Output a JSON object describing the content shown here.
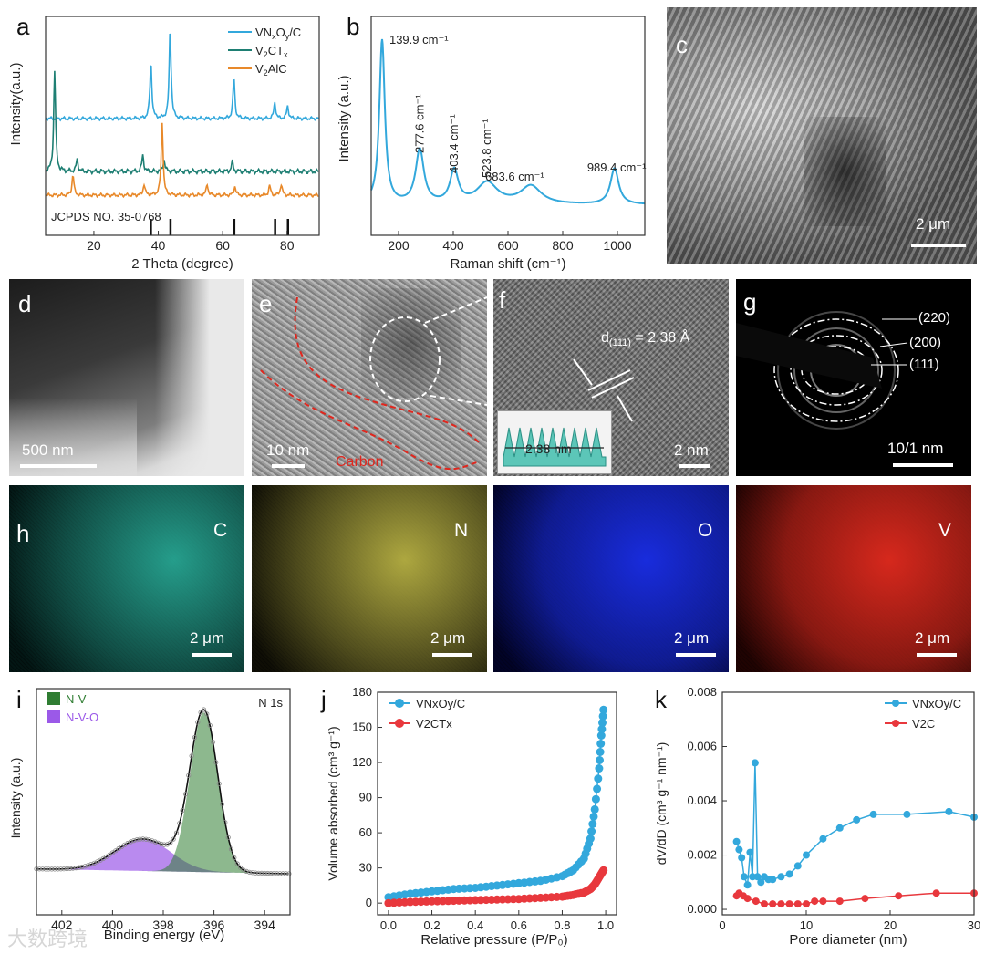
{
  "figure": {
    "panels": {
      "a": {
        "label": "a"
      },
      "b": {
        "label": "b"
      },
      "c": {
        "label": "c"
      },
      "d": {
        "label": "d"
      },
      "e": {
        "label": "e"
      },
      "f": {
        "label": "f"
      },
      "g": {
        "label": "g"
      },
      "h": {
        "label": "h"
      },
      "i": {
        "label": "i"
      },
      "j": {
        "label": "j"
      },
      "k": {
        "label": "k"
      }
    },
    "micrographs": {
      "c": {
        "scale": "2 μm",
        "kind": "SEM image"
      },
      "d": {
        "scale": "500 nm",
        "kind": "TEM image"
      },
      "e": {
        "scale": "10 nm",
        "annotation": "Carbon",
        "kind": "HRTEM image"
      },
      "f": {
        "scale": "2 nm",
        "d_spacing_label": "d(111) = 2.38 Å",
        "d_main": "d",
        "d_sub": "(111)",
        "d_rest": " = 2.38 Å",
        "inset_label": "2.38 nm",
        "kind": "HRTEM lattice image"
      },
      "g": {
        "scale": "10/1 nm",
        "rings": [
          "(220)",
          "(200)",
          "(111)"
        ],
        "kind": "SAED pattern"
      },
      "h": {
        "maps": [
          {
            "element": "C",
            "color": "#2bb5a0",
            "scale": "2 μm"
          },
          {
            "element": "N",
            "color": "#c9c24a",
            "scale": "2 μm"
          },
          {
            "element": "O",
            "color": "#1a2ee6",
            "scale": "2 μm"
          },
          {
            "element": "V",
            "color": "#e02a1e",
            "scale": "2 μm"
          }
        ]
      }
    },
    "watermark": "大数跨境"
  },
  "chart_data": [
    {
      "id": "a",
      "type": "line",
      "title": "",
      "xlabel": "2 Theta (degree)",
      "ylabel": "Intensity(a.u.)",
      "xlim": [
        5,
        90
      ],
      "xticks": [
        20,
        40,
        60,
        80
      ],
      "series": [
        {
          "name_main": "VN",
          "name_sub1": "x",
          "name_mid": "O",
          "name_sub2": "y",
          "name_end": "/C",
          "color": "#33a8dc",
          "peaks": [
            {
              "x": 37.7,
              "h": 0.62
            },
            {
              "x": 43.7,
              "h": 1.0
            },
            {
              "x": 63.5,
              "h": 0.45
            },
            {
              "x": 76.2,
              "h": 0.18
            },
            {
              "x": 80.2,
              "h": 0.14
            }
          ]
        },
        {
          "name_main": "V",
          "name_sub1": "2",
          "name_mid": "CT",
          "name_sub2": "x",
          "name_end": "",
          "color": "#1e7f73",
          "peaks": [
            {
              "x": 7.8,
              "h": 0.85
            },
            {
              "x": 14.8,
              "h": 0.1
            },
            {
              "x": 35.2,
              "h": 0.14
            },
            {
              "x": 41.8,
              "h": 0.1
            },
            {
              "x": 63.0,
              "h": 0.08
            }
          ]
        },
        {
          "name_main": "V",
          "name_sub1": "2",
          "name_mid": "AlC",
          "name_sub2": "",
          "name_end": "",
          "color": "#e8892a",
          "peaks": [
            {
              "x": 13.5,
              "h": 0.22
            },
            {
              "x": 35.6,
              "h": 0.12
            },
            {
              "x": 41.2,
              "h": 0.8
            },
            {
              "x": 55.2,
              "h": 0.12
            },
            {
              "x": 63.8,
              "h": 0.1
            },
            {
              "x": 74.6,
              "h": 0.1
            },
            {
              "x": 78.2,
              "h": 0.12
            }
          ]
        }
      ],
      "reference": {
        "label": "JCPDS NO. 35-0768",
        "lines": [
          37.7,
          43.8,
          63.6,
          76.3,
          80.3
        ]
      }
    },
    {
      "id": "b",
      "type": "line",
      "title": "",
      "xlabel": "Raman shift (cm⁻¹)",
      "ylabel": "Intensity (a.u.)",
      "xlim": [
        100,
        1100
      ],
      "xticks": [
        200,
        400,
        600,
        800,
        1000
      ],
      "series": [
        {
          "name": "VNxOy/C",
          "color": "#33a8dc",
          "peaks": [
            {
              "x": 139.9,
              "h": 1.0
            },
            {
              "x": 277.6,
              "h": 0.33
            },
            {
              "x": 403.4,
              "h": 0.2
            },
            {
              "x": 523.8,
              "h": 0.13
            },
            {
              "x": 683.6,
              "h": 0.11
            },
            {
              "x": 989.4,
              "h": 0.22
            }
          ]
        }
      ],
      "annotations": [
        "139.9 cm⁻¹",
        "277.6 cm⁻¹",
        "403.4 cm⁻¹",
        "523.8 cm⁻¹",
        "683.6 cm⁻¹",
        "989.4 cm⁻¹"
      ]
    },
    {
      "id": "i",
      "type": "area",
      "title": "N 1s",
      "xlabel": "Binding energy (eV)",
      "ylabel": "Intensity (a.u.)",
      "xlim": [
        403,
        393
      ],
      "xticks": [
        402,
        400,
        398,
        396,
        394
      ],
      "series": [
        {
          "name": "N-V",
          "color": "#2f7d32",
          "center": 396.4,
          "height": 1.0,
          "width": 0.55
        },
        {
          "name": "N-V-O",
          "color": "#9b59e8",
          "center": 398.8,
          "height": 0.2,
          "width": 1.1
        }
      ]
    },
    {
      "id": "j",
      "type": "line",
      "title": "",
      "xlabel": "Relative pressure (P/P₀)",
      "ylabel": "Volume absorbed (cm³ g⁻¹)",
      "xlim": [
        -0.05,
        1.05
      ],
      "ylim": [
        -10,
        180
      ],
      "xticks": [
        0.0,
        0.2,
        0.4,
        0.6,
        0.8,
        1.0
      ],
      "yticks": [
        0,
        30,
        60,
        90,
        120,
        150,
        180
      ],
      "series": [
        {
          "name": "VNxOy/C",
          "color": "#33a8dc",
          "x": [
            0.0,
            0.1,
            0.2,
            0.3,
            0.4,
            0.5,
            0.6,
            0.7,
            0.8,
            0.85,
            0.9,
            0.93,
            0.95,
            0.97,
            0.98,
            0.99
          ],
          "y": [
            5,
            8,
            10,
            12,
            13,
            15,
            17,
            19,
            23,
            28,
            38,
            55,
            80,
            115,
            143,
            165
          ]
        },
        {
          "name": "V2CTx",
          "color": "#e8383d",
          "x": [
            0.0,
            0.1,
            0.2,
            0.3,
            0.4,
            0.5,
            0.6,
            0.7,
            0.8,
            0.85,
            0.9,
            0.93,
            0.95,
            0.97,
            0.99
          ],
          "y": [
            0,
            1,
            1.5,
            2,
            2.5,
            3,
            3.5,
            4.5,
            5.5,
            7,
            9,
            12,
            16,
            22,
            28
          ]
        }
      ]
    },
    {
      "id": "k",
      "type": "line",
      "title": "",
      "xlabel": "Pore diameter (nm)",
      "ylabel": "dV/dD (cm³ g⁻¹ nm⁻¹)",
      "xlim": [
        0,
        30
      ],
      "ylim": [
        -0.0002,
        0.008
      ],
      "xticks": [
        0,
        10,
        20,
        30
      ],
      "yticks": [
        0.0,
        0.002,
        0.004,
        0.006,
        0.008
      ],
      "series": [
        {
          "name": "VNxOy/C",
          "color": "#33a8dc",
          "x": [
            1.7,
            2.0,
            2.3,
            2.6,
            3.0,
            3.3,
            3.6,
            3.9,
            4.2,
            4.6,
            5.0,
            5.5,
            6.0,
            7.0,
            8.0,
            9.0,
            10.0,
            12.0,
            14.0,
            16.0,
            18.0,
            22.0,
            27.0,
            30.0
          ],
          "y": [
            0.0025,
            0.0022,
            0.0019,
            0.0012,
            0.0009,
            0.0021,
            0.0012,
            0.0054,
            0.0012,
            0.001,
            0.0012,
            0.0011,
            0.0011,
            0.0012,
            0.0013,
            0.0016,
            0.002,
            0.0026,
            0.003,
            0.0033,
            0.0035,
            0.0035,
            0.0036,
            0.0034
          ]
        },
        {
          "name": "V2C",
          "color": "#e8383d",
          "x": [
            1.7,
            2.0,
            2.5,
            3.0,
            4.0,
            5.0,
            6.0,
            7.0,
            8.0,
            9.0,
            10.0,
            11.0,
            12.0,
            14.0,
            17.0,
            21.0,
            25.5,
            30.0
          ],
          "y": [
            0.0005,
            0.0006,
            0.0005,
            0.0004,
            0.0003,
            0.0002,
            0.0002,
            0.0002,
            0.0002,
            0.0002,
            0.0002,
            0.0003,
            0.0003,
            0.0003,
            0.0004,
            0.0005,
            0.0006,
            0.0006
          ]
        }
      ]
    }
  ]
}
